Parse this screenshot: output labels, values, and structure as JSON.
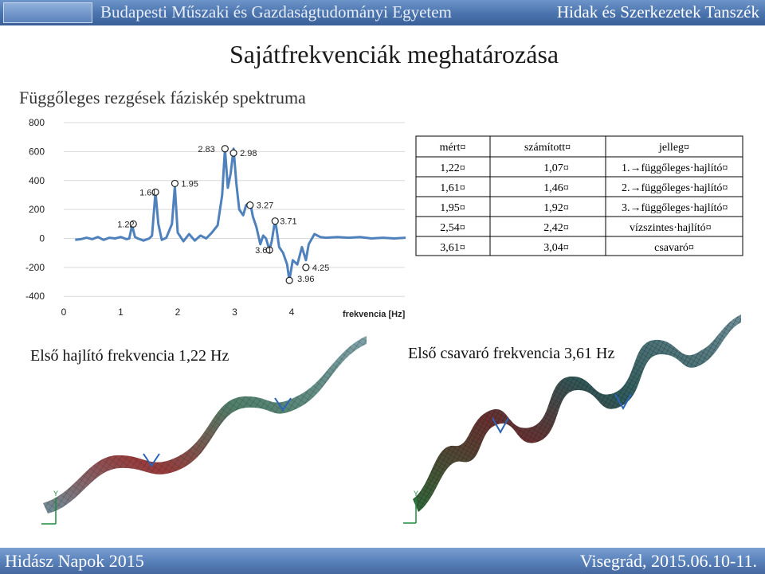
{
  "header": {
    "university": "Budapesti Műszaki és Gazdaságtudományi Egyetem",
    "department": "Hidak és Szerkezetek Tanszék"
  },
  "slide": {
    "title": "Sajátfrekvenciák meghatározása",
    "subtitle": "Függőleges rezgések fáziskép spektruma"
  },
  "chart_data": {
    "type": "line",
    "xlabel": "frekvencia [Hz]",
    "ylabel": "",
    "xlim": [
      0,
      6
    ],
    "ylim": [
      -400,
      800
    ],
    "x_ticks": [
      "0",
      "1",
      "2",
      "3",
      "4"
    ],
    "y_ticks": [
      "800",
      "600",
      "400",
      "200",
      "0",
      "-200",
      "-400"
    ],
    "series_color": "#4f81bd",
    "curve": [
      [
        0.2,
        -10
      ],
      [
        0.3,
        -5
      ],
      [
        0.4,
        5
      ],
      [
        0.5,
        -5
      ],
      [
        0.6,
        10
      ],
      [
        0.7,
        -10
      ],
      [
        0.8,
        5
      ],
      [
        0.9,
        0
      ],
      [
        1.0,
        10
      ],
      [
        1.1,
        -5
      ],
      [
        1.15,
        0
      ],
      [
        1.2,
        90
      ],
      [
        1.25,
        10
      ],
      [
        1.3,
        0
      ],
      [
        1.4,
        -15
      ],
      [
        1.5,
        0
      ],
      [
        1.55,
        20
      ],
      [
        1.61,
        320
      ],
      [
        1.66,
        100
      ],
      [
        1.72,
        -10
      ],
      [
        1.8,
        5
      ],
      [
        1.9,
        100
      ],
      [
        1.95,
        360
      ],
      [
        2.0,
        40
      ],
      [
        2.1,
        -20
      ],
      [
        2.2,
        30
      ],
      [
        2.3,
        -15
      ],
      [
        2.4,
        20
      ],
      [
        2.5,
        0
      ],
      [
        2.6,
        40
      ],
      [
        2.7,
        90
      ],
      [
        2.78,
        300
      ],
      [
        2.83,
        620
      ],
      [
        2.88,
        350
      ],
      [
        2.93,
        450
      ],
      [
        2.98,
        620
      ],
      [
        3.03,
        380
      ],
      [
        3.08,
        200
      ],
      [
        3.15,
        160
      ],
      [
        3.2,
        230
      ],
      [
        3.27,
        250
      ],
      [
        3.32,
        150
      ],
      [
        3.38,
        80
      ],
      [
        3.45,
        -40
      ],
      [
        3.5,
        20
      ],
      [
        3.55,
        0
      ],
      [
        3.61,
        -80
      ],
      [
        3.65,
        -20
      ],
      [
        3.71,
        130
      ],
      [
        3.78,
        -60
      ],
      [
        3.85,
        -100
      ],
      [
        3.92,
        -180
      ],
      [
        3.96,
        -290
      ],
      [
        4.02,
        -150
      ],
      [
        4.1,
        -180
      ],
      [
        4.18,
        -60
      ],
      [
        4.25,
        -150
      ],
      [
        4.3,
        -40
      ],
      [
        4.4,
        30
      ],
      [
        4.5,
        10
      ],
      [
        4.6,
        5
      ],
      [
        4.8,
        10
      ],
      [
        5.0,
        5
      ],
      [
        5.2,
        10
      ],
      [
        5.4,
        0
      ],
      [
        5.6,
        5
      ],
      [
        5.8,
        0
      ],
      [
        6.0,
        5
      ]
    ],
    "peaks": [
      {
        "x": 1.22,
        "label": "1.22",
        "y": 100
      },
      {
        "x": 1.61,
        "label": "1.61",
        "y": 320
      },
      {
        "x": 1.95,
        "label": "1.95",
        "y": 380
      },
      {
        "x": 2.83,
        "label": "2.83",
        "y": 620
      },
      {
        "x": 2.98,
        "label": "2.98",
        "y": 590
      },
      {
        "x": 3.27,
        "label": "3.27",
        "y": 230
      },
      {
        "x": 3.71,
        "label": "3.71",
        "y": 120
      },
      {
        "x": 3.61,
        "label": "3.61",
        "y": -80
      },
      {
        "x": 4.25,
        "label": "4.25",
        "y": -200
      },
      {
        "x": 3.96,
        "label": "3.96",
        "y": -290
      }
    ]
  },
  "table": {
    "headers": [
      "mért¤",
      "számított¤",
      "jelleg¤"
    ],
    "rows": [
      [
        "1,22¤",
        "1,07¤",
        "1.→függőleges·hajlító¤"
      ],
      [
        "1,61¤",
        "1,46¤",
        "2.→függőleges·hajlító¤"
      ],
      [
        "1,95¤",
        "1,92¤",
        "3.→függőleges·hajlító¤"
      ],
      [
        "2,54¤",
        "2,42¤",
        "vízszintes·hajlító¤"
      ],
      [
        "3,61¤",
        "3,04¤",
        "csavaró¤"
      ]
    ]
  },
  "captions": {
    "left": "Első hajlító frekvencia 1,22 Hz",
    "right": "Első csavaró frekvencia 3,61 Hz"
  },
  "footer": {
    "left": "Hidász Napok 2015",
    "right": "Visegrád, 2015.06.10-11."
  }
}
